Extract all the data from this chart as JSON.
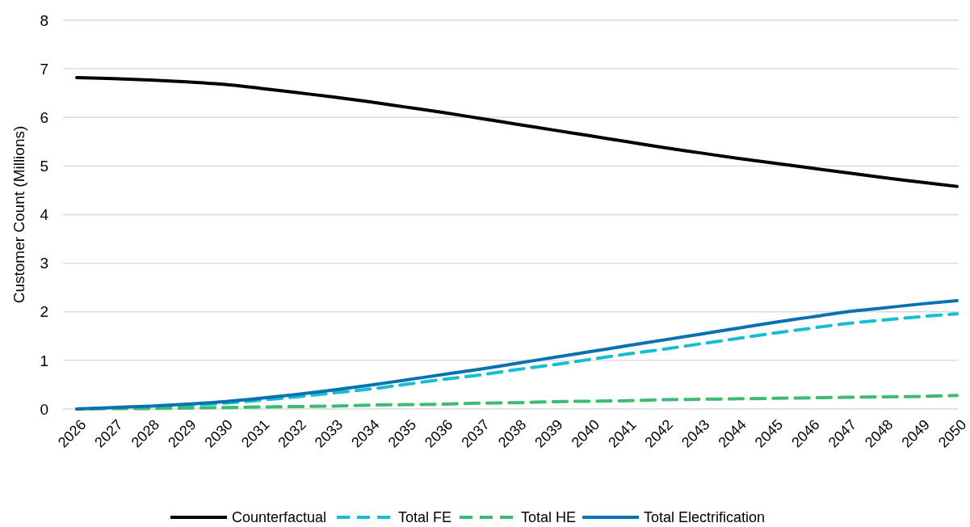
{
  "chart_data": {
    "type": "line",
    "ylabel": "Customer Count (Millions)",
    "categories": [
      "2026",
      "2027",
      "2028",
      "2029",
      "2030",
      "2031",
      "2032",
      "2033",
      "2034",
      "2035",
      "2036",
      "2037",
      "2038",
      "2039",
      "2040",
      "2041",
      "2042",
      "2043",
      "2044",
      "2045",
      "2046",
      "2047",
      "2048",
      "2049",
      "2050"
    ],
    "ylim": [
      0,
      8
    ],
    "yticks": [
      0,
      1,
      2,
      3,
      4,
      5,
      6,
      7,
      8
    ],
    "grid": "y",
    "legend": "bottom",
    "series": [
      {
        "name": "Counterfactual",
        "color": "#000000",
        "line_style": "solid",
        "values": [
          6.82,
          6.8,
          6.77,
          6.73,
          6.68,
          6.6,
          6.51,
          6.42,
          6.32,
          6.21,
          6.1,
          5.98,
          5.86,
          5.74,
          5.62,
          5.5,
          5.38,
          5.27,
          5.16,
          5.06,
          4.96,
          4.86,
          4.76,
          4.67,
          4.58
        ]
      },
      {
        "name": "Total FE",
        "color": "#17becf",
        "line_style": "dashed",
        "values": [
          0,
          0.02,
          0.05,
          0.08,
          0.12,
          0.18,
          0.25,
          0.33,
          0.41,
          0.51,
          0.61,
          0.7,
          0.81,
          0.91,
          1.02,
          1.13,
          1.23,
          1.34,
          1.45,
          1.56,
          1.66,
          1.76,
          1.83,
          1.9,
          1.96
        ]
      },
      {
        "name": "Total HE",
        "color": "#3dbb72",
        "line_style": "dashed",
        "values": [
          0,
          0.01,
          0.01,
          0.02,
          0.03,
          0.04,
          0.05,
          0.06,
          0.08,
          0.09,
          0.1,
          0.12,
          0.13,
          0.15,
          0.16,
          0.17,
          0.19,
          0.2,
          0.21,
          0.22,
          0.23,
          0.24,
          0.25,
          0.26,
          0.28
        ]
      },
      {
        "name": "Total Electrification",
        "color": "#0a72b0",
        "line_style": "solid",
        "values": [
          0,
          0.03,
          0.06,
          0.1,
          0.15,
          0.22,
          0.3,
          0.39,
          0.49,
          0.6,
          0.71,
          0.82,
          0.94,
          1.06,
          1.18,
          1.3,
          1.42,
          1.54,
          1.66,
          1.78,
          1.89,
          2.0,
          2.08,
          2.16,
          2.23
        ]
      }
    ]
  }
}
